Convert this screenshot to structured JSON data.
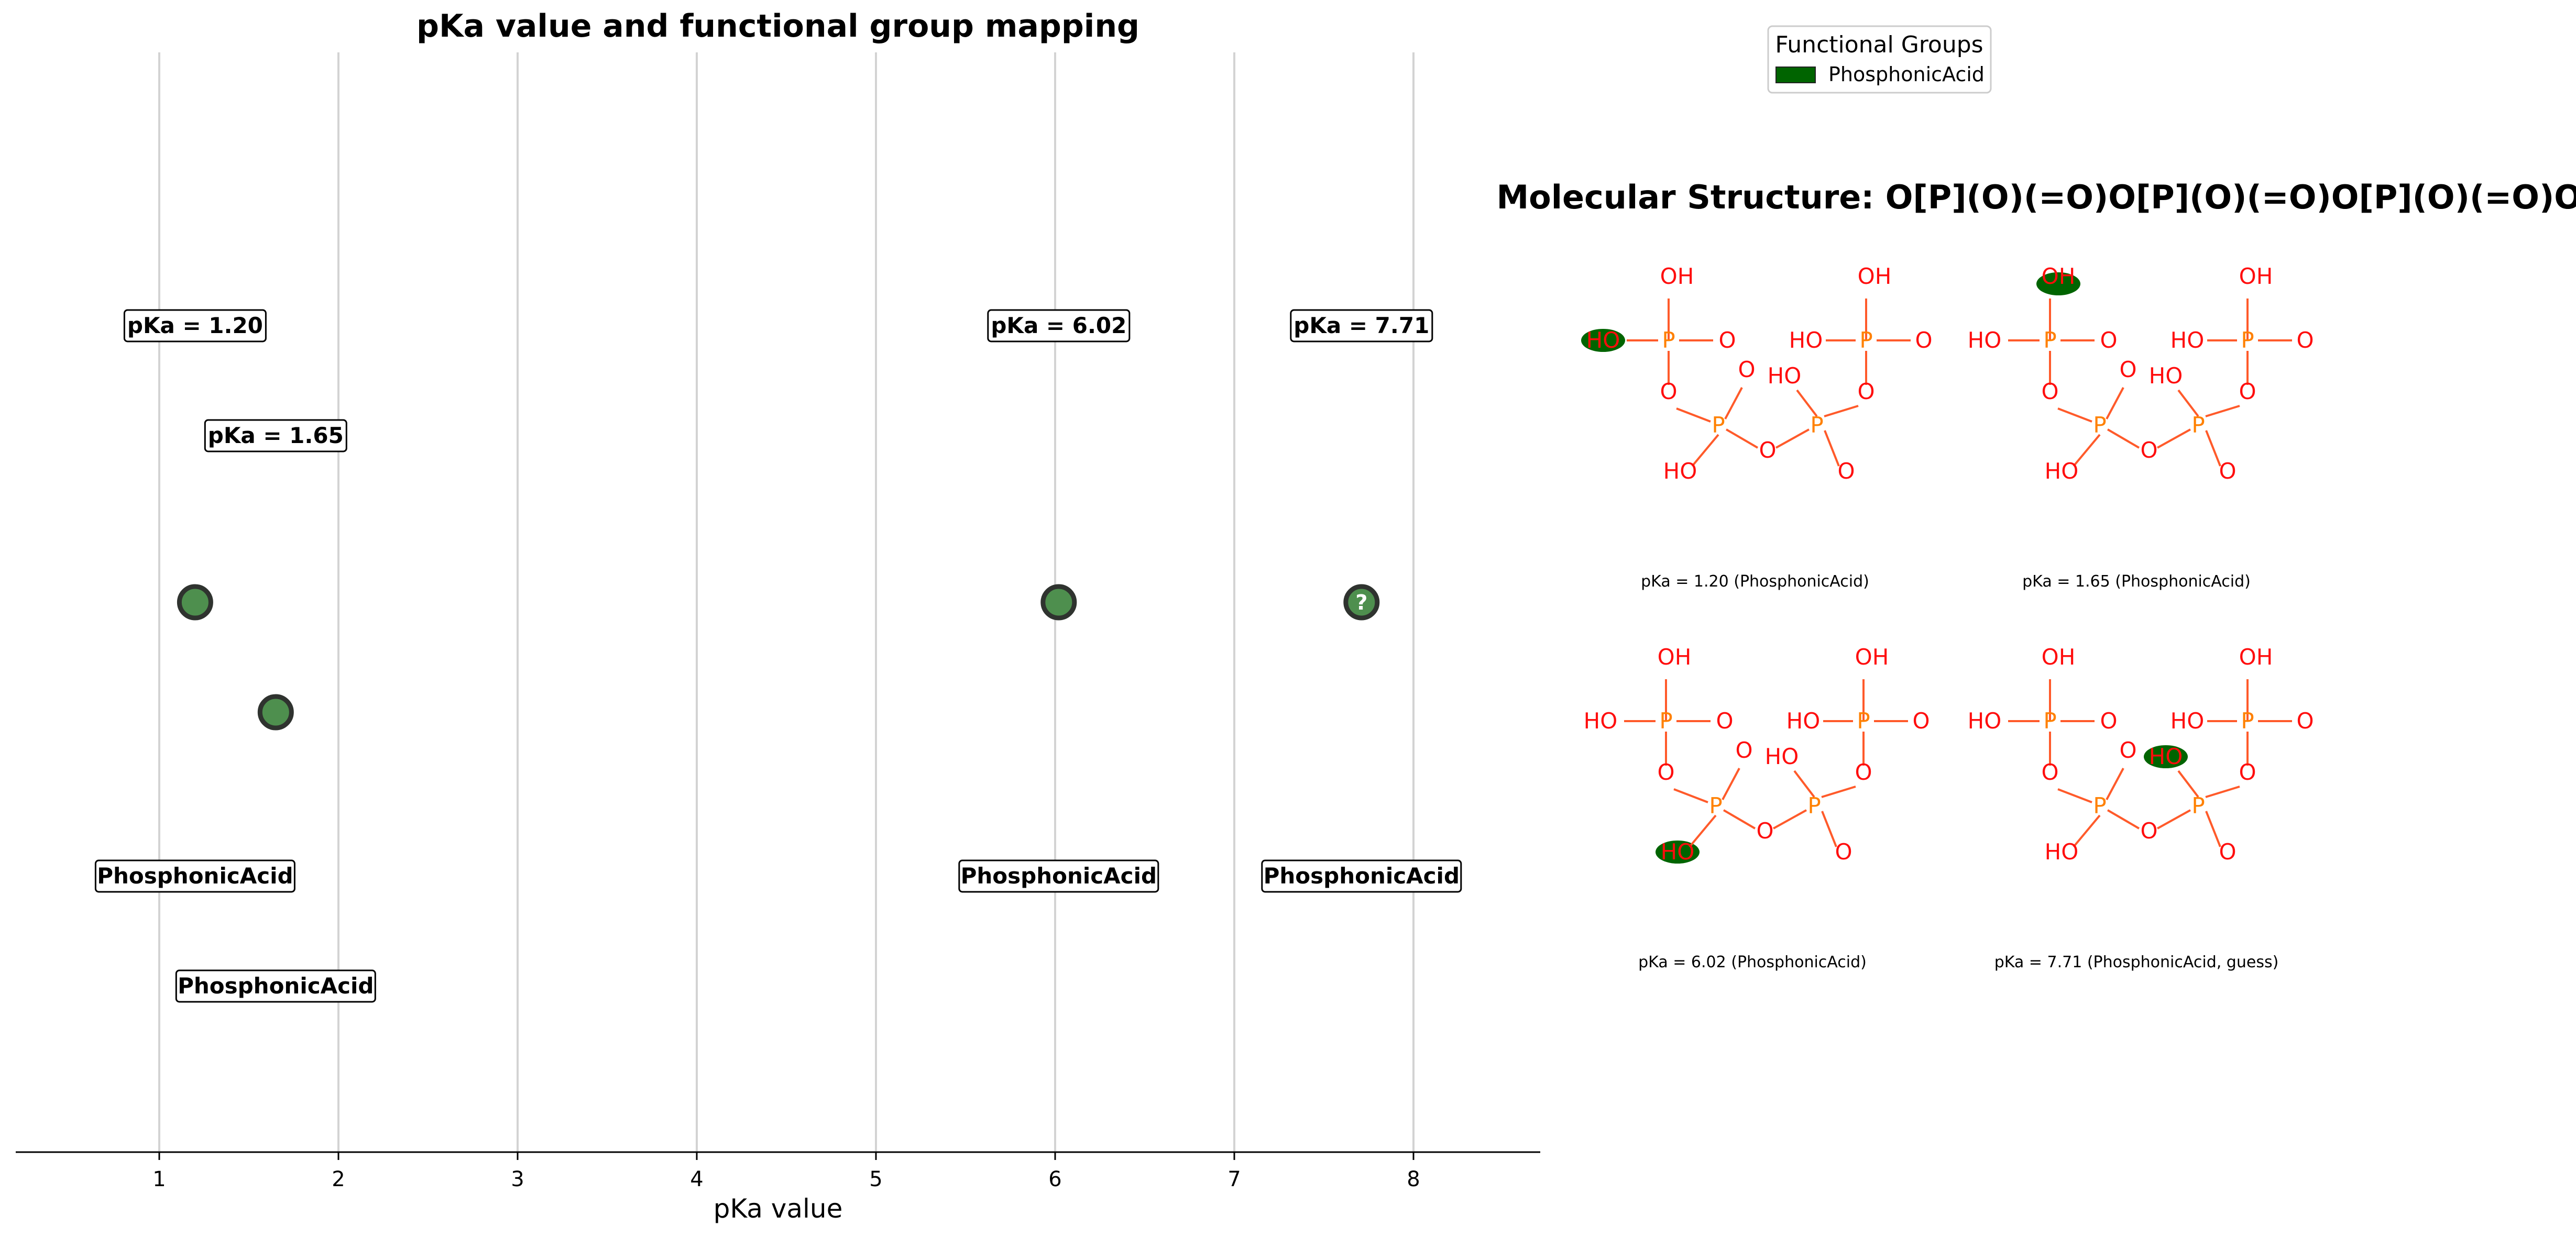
{
  "chart_data": {
    "type": "scatter",
    "title": "pKa value and functional group mapping",
    "xlabel": "pKa value",
    "ylabel": "",
    "xlim": [
      0.2,
      8.7
    ],
    "xticks": [
      "1",
      "2",
      "3",
      "4",
      "5",
      "6",
      "7",
      "8"
    ],
    "grid": "vertical",
    "points": [
      {
        "x": 1.2,
        "pka_label": "pKa = 1.20",
        "group": "PhosphonicAcid",
        "row": 0,
        "marker": ""
      },
      {
        "x": 1.65,
        "pka_label": "pKa = 1.65",
        "group": "PhosphonicAcid",
        "row": 1,
        "marker": ""
      },
      {
        "x": 6.02,
        "pka_label": "pKa = 6.02",
        "group": "PhosphonicAcid",
        "row": 0,
        "marker": ""
      },
      {
        "x": 7.71,
        "pka_label": "pKa = 7.71",
        "group": "PhosphonicAcid",
        "row": 0,
        "marker": "?"
      }
    ]
  },
  "legend": {
    "title": "Functional Groups",
    "placement": "top-right",
    "items": [
      {
        "label": "PhosphonicAcid",
        "color": "#006400"
      }
    ]
  },
  "molecule": {
    "title": "Molecular Structure: O[P](O)(=O)O[P](O)(=O)O[P](O)(=O)O[P](O)(O)=O",
    "atom_color": "#ff0d0d",
    "phosphorus_color": "#ff8000",
    "highlight_color": "#006400",
    "panels": [
      {
        "caption": "pKa = 1.20 (PhosphonicAcid)",
        "highlight_site": "a"
      },
      {
        "caption": "pKa = 1.65 (PhosphonicAcid)",
        "highlight_site": "b"
      },
      {
        "caption": "pKa = 6.02 (PhosphonicAcid)",
        "highlight_site": "c"
      },
      {
        "caption": "pKa = 7.71 (PhosphonicAcid, guess)",
        "highlight_site": "d"
      }
    ]
  },
  "colors": {
    "marker_fill": "#4e8f4e",
    "marker_edge": "#2f332f",
    "grid": "#d3d3d3"
  }
}
